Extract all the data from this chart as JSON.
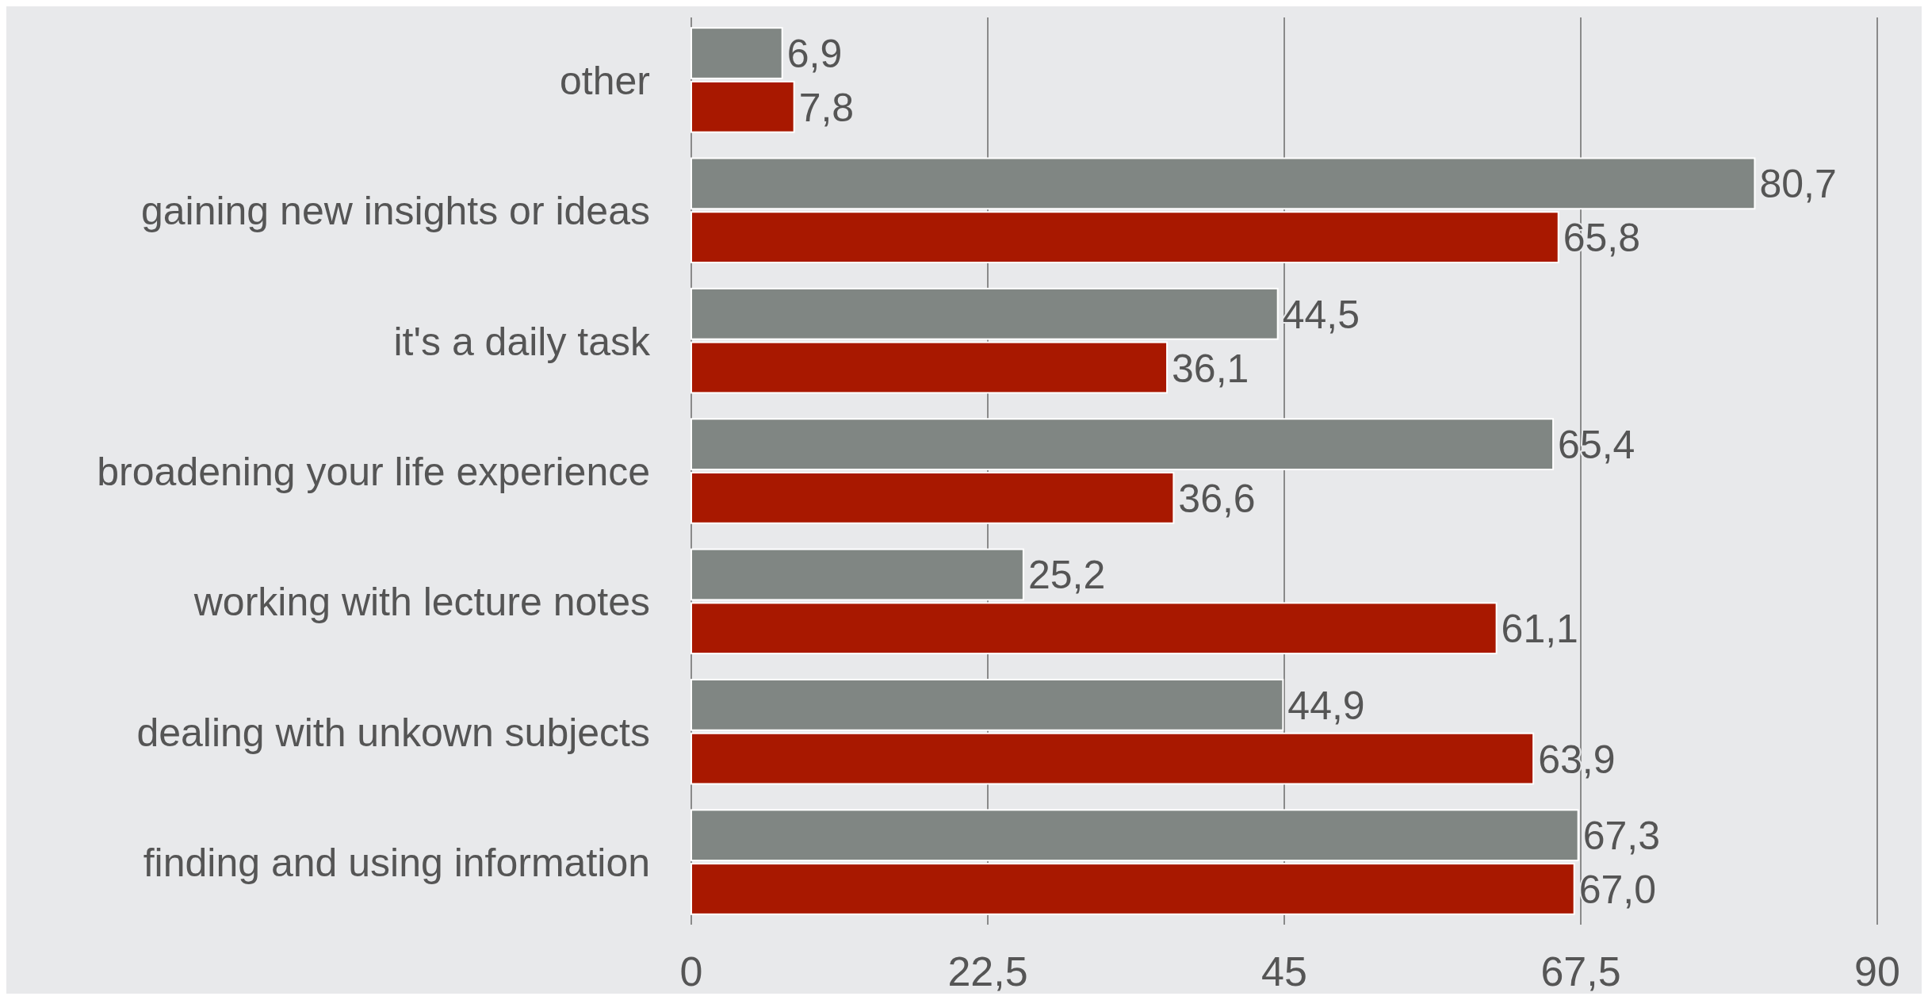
{
  "chart_data": {
    "type": "bar",
    "orientation": "horizontal",
    "categories": [
      "other",
      "gaining new insights or ideas",
      "it's a daily task",
      "broadening your life experience",
      "working with lecture notes",
      "dealing with unkown subjects",
      "finding and using information"
    ],
    "series": [
      {
        "color": "#808683",
        "values": [
          6.9,
          80.7,
          44.5,
          65.4,
          25.2,
          44.9,
          67.3
        ],
        "value_labels": [
          "6,9",
          "80,7",
          "44,5",
          "65,4",
          "25,2",
          "44,9",
          "67,3"
        ]
      },
      {
        "color": "#a81800",
        "values": [
          7.8,
          65.8,
          36.1,
          36.6,
          61.1,
          63.9,
          67.0
        ],
        "value_labels": [
          "7,8",
          "65,8",
          "36,1",
          "36,6",
          "61,1",
          "63,9",
          "67,0"
        ]
      }
    ],
    "xlim": [
      0,
      90
    ],
    "xticks": [
      0,
      {
        "value": 22.5,
        "label": "22,5"
      },
      45,
      {
        "value": 67.5,
        "label": "67,5"
      },
      90
    ],
    "grid": "x"
  }
}
